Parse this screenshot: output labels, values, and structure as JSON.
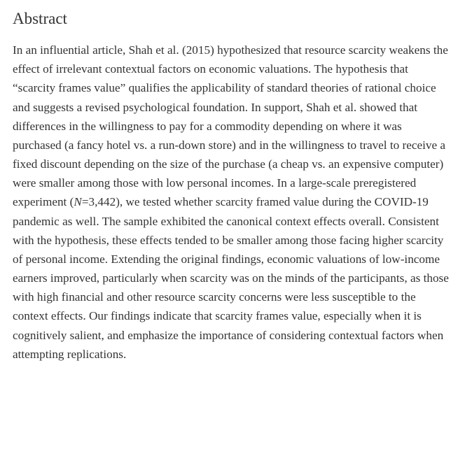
{
  "heading": "Abstract",
  "body_pre": "In an influential article, Shah et al. (2015) hypothesized that resource scarcity weakens the effect of irrelevant contextual factors on economic valuations. The hypothesis that “scarcity frames value” qualifies the applicability of standard theories of rational choice and suggests a revised psychological foundation. In support, Shah et al. showed that differences in the willingness to pay for a commodity depending on where it was purchased (a fancy hotel vs. a run-down store) and in the willingness to travel to receive a fixed discount depending on the size of the purchase (a cheap vs. an expensive computer) were smaller among those with low personal incomes. In a large-scale preregistered experiment (",
  "sample_label": "N",
  "sample_value": "=3,442",
  "body_post": "), we tested whether scarcity framed value during the COVID-19 pandemic as well. The sample exhibited the canonical context effects overall. Consistent with the hypothesis, these effects tended to be smaller among those facing higher scarcity of personal income. Extending the original findings, economic valuations of low-income earners improved, particularly when scarcity was on the minds of the participants, as those with high financial and other resource scarcity concerns were less susceptible to the context effects. Our findings indicate that scarcity frames value, especially when it is cognitively salient, and emphasize the importance of considering contextual factors when attempting replications.",
  "colors": {
    "text": "#333333",
    "background": "#ffffff"
  },
  "typography": {
    "heading_fontsize": 23,
    "body_fontsize": 17.2,
    "body_lineheight": 1.58,
    "font_family": "Georgia, Times New Roman, serif"
  }
}
